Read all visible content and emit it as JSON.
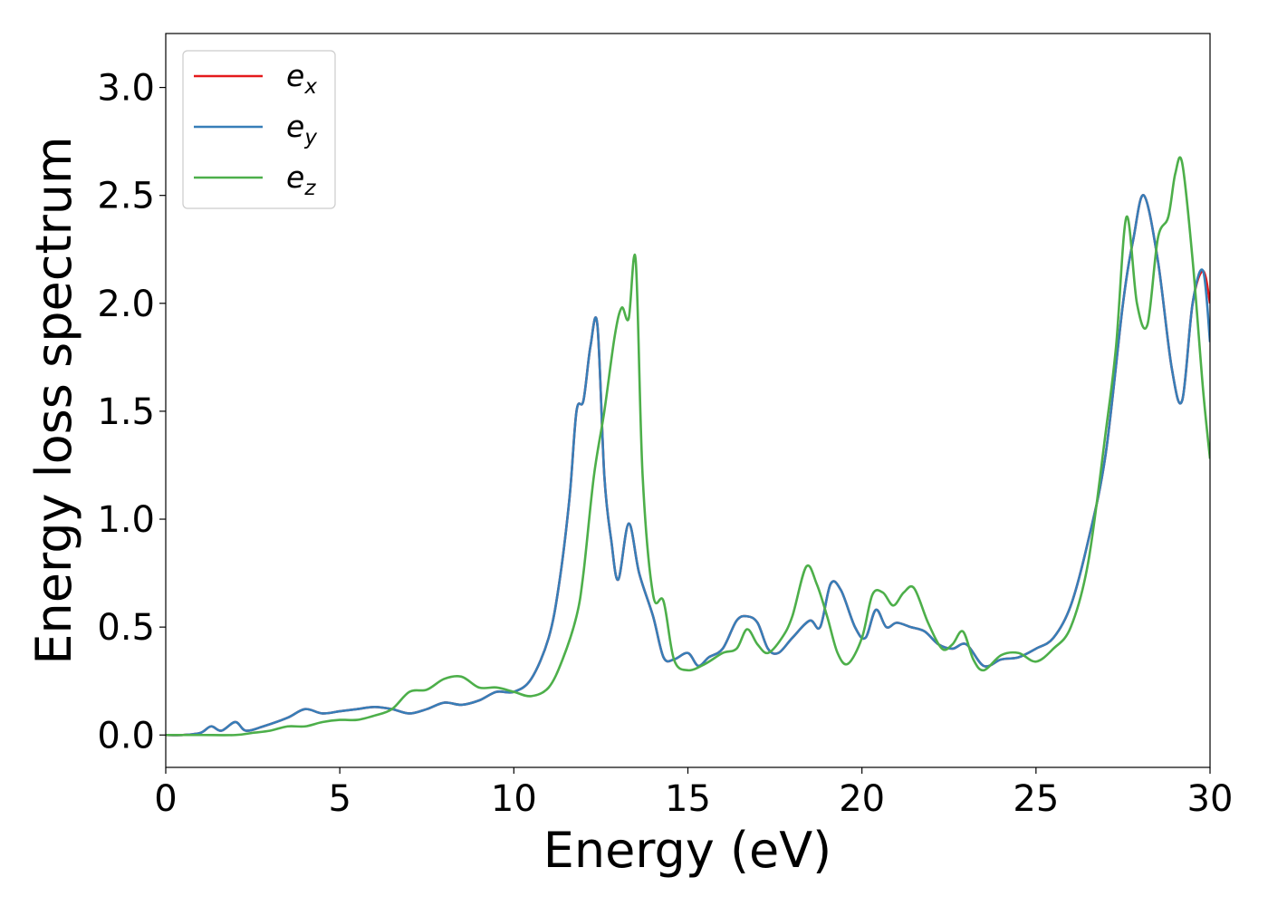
{
  "chart_data": {
    "type": "line",
    "title": "",
    "xlabel": "Energy (eV)",
    "ylabel": "Energy loss spectrum",
    "xlim": [
      0,
      30
    ],
    "ylim": [
      -0.15,
      3.25
    ],
    "xticks": [
      0,
      5,
      10,
      15,
      20,
      25,
      30
    ],
    "yticks": [
      0.0,
      0.5,
      1.0,
      1.5,
      2.0,
      2.5,
      3.0
    ],
    "xtick_labels": [
      "0",
      "5",
      "10",
      "15",
      "20",
      "25",
      "30"
    ],
    "ytick_labels": [
      "0.0",
      "0.5",
      "1.0",
      "1.5",
      "2.0",
      "2.5",
      "3.0"
    ],
    "grid": false,
    "legend_position": "top-left",
    "series": [
      {
        "name": "e_x",
        "label_base": "e",
        "label_sub": "x",
        "color": "#e41a1c",
        "x": [
          0,
          0.5,
          1.0,
          1.3,
          1.6,
          2.0,
          2.3,
          2.8,
          3.5,
          4.0,
          4.5,
          5.0,
          5.5,
          6.0,
          6.5,
          7.0,
          7.5,
          8.0,
          8.5,
          9.0,
          9.5,
          10.0,
          10.5,
          11.0,
          11.3,
          11.6,
          11.8,
          12.0,
          12.2,
          12.4,
          12.6,
          12.8,
          13.0,
          13.3,
          13.6,
          14.0,
          14.3,
          14.6,
          15.0,
          15.3,
          15.6,
          16.0,
          16.4,
          16.7,
          17.0,
          17.3,
          17.6,
          18.0,
          18.5,
          18.8,
          19.1,
          19.4,
          19.8,
          20.1,
          20.4,
          20.7,
          21.0,
          21.4,
          21.8,
          22.2,
          22.6,
          23.0,
          23.5,
          24.0,
          24.5,
          25.0,
          25.5,
          26.0,
          26.5,
          27.0,
          27.5,
          27.8,
          28.1,
          28.5,
          28.9,
          29.2,
          29.5,
          29.8,
          30.0
        ],
        "values": [
          0,
          0,
          0.01,
          0.04,
          0.02,
          0.06,
          0.02,
          0.04,
          0.08,
          0.12,
          0.1,
          0.11,
          0.12,
          0.13,
          0.12,
          0.1,
          0.12,
          0.15,
          0.14,
          0.16,
          0.2,
          0.2,
          0.26,
          0.45,
          0.7,
          1.1,
          1.5,
          1.55,
          1.8,
          1.9,
          1.2,
          0.9,
          0.72,
          0.98,
          0.75,
          0.55,
          0.36,
          0.35,
          0.38,
          0.32,
          0.36,
          0.4,
          0.53,
          0.55,
          0.52,
          0.4,
          0.38,
          0.45,
          0.53,
          0.5,
          0.7,
          0.67,
          0.5,
          0.45,
          0.58,
          0.5,
          0.52,
          0.5,
          0.48,
          0.42,
          0.4,
          0.42,
          0.32,
          0.35,
          0.36,
          0.4,
          0.45,
          0.6,
          0.9,
          1.3,
          2.0,
          2.3,
          2.5,
          2.2,
          1.7,
          1.55,
          2.0,
          2.15,
          2.0
        ]
      },
      {
        "name": "e_y",
        "label_base": "e",
        "label_sub": "y",
        "color": "#377eb8",
        "x": [
          0,
          0.5,
          1.0,
          1.3,
          1.6,
          2.0,
          2.3,
          2.8,
          3.5,
          4.0,
          4.5,
          5.0,
          5.5,
          6.0,
          6.5,
          7.0,
          7.5,
          8.0,
          8.5,
          9.0,
          9.5,
          10.0,
          10.5,
          11.0,
          11.3,
          11.6,
          11.8,
          12.0,
          12.2,
          12.4,
          12.6,
          12.8,
          13.0,
          13.3,
          13.6,
          14.0,
          14.3,
          14.6,
          15.0,
          15.3,
          15.6,
          16.0,
          16.4,
          16.7,
          17.0,
          17.3,
          17.6,
          18.0,
          18.5,
          18.8,
          19.1,
          19.4,
          19.8,
          20.1,
          20.4,
          20.7,
          21.0,
          21.4,
          21.8,
          22.2,
          22.6,
          23.0,
          23.5,
          24.0,
          24.5,
          25.0,
          25.5,
          26.0,
          26.5,
          27.0,
          27.5,
          27.8,
          28.1,
          28.5,
          28.9,
          29.2,
          29.5,
          29.8,
          30.0
        ],
        "values": [
          0,
          0,
          0.01,
          0.04,
          0.02,
          0.06,
          0.02,
          0.04,
          0.08,
          0.12,
          0.1,
          0.11,
          0.12,
          0.13,
          0.12,
          0.1,
          0.12,
          0.15,
          0.14,
          0.16,
          0.2,
          0.2,
          0.26,
          0.45,
          0.7,
          1.1,
          1.5,
          1.55,
          1.8,
          1.9,
          1.2,
          0.9,
          0.72,
          0.98,
          0.75,
          0.55,
          0.36,
          0.35,
          0.38,
          0.32,
          0.36,
          0.4,
          0.53,
          0.55,
          0.52,
          0.4,
          0.38,
          0.45,
          0.53,
          0.5,
          0.7,
          0.67,
          0.5,
          0.45,
          0.58,
          0.5,
          0.52,
          0.5,
          0.48,
          0.42,
          0.4,
          0.42,
          0.32,
          0.35,
          0.36,
          0.4,
          0.45,
          0.6,
          0.9,
          1.3,
          2.0,
          2.3,
          2.5,
          2.2,
          1.7,
          1.55,
          2.0,
          2.15,
          1.82
        ]
      },
      {
        "name": "e_z",
        "label_base": "e",
        "label_sub": "z",
        "color": "#4daf4a",
        "x": [
          0,
          1.0,
          2.0,
          2.5,
          3.0,
          3.5,
          4.0,
          4.5,
          5.0,
          5.5,
          6.0,
          6.5,
          7.0,
          7.5,
          8.0,
          8.5,
          9.0,
          9.5,
          10.0,
          10.5,
          11.0,
          11.4,
          11.8,
          12.0,
          12.3,
          12.6,
          12.9,
          13.1,
          13.3,
          13.5,
          13.7,
          14.0,
          14.3,
          14.6,
          15.0,
          15.5,
          16.0,
          16.4,
          16.7,
          17.0,
          17.3,
          17.7,
          18.0,
          18.4,
          18.7,
          19.0,
          19.3,
          19.6,
          20.0,
          20.3,
          20.6,
          20.9,
          21.2,
          21.5,
          21.9,
          22.3,
          22.6,
          22.9,
          23.2,
          23.5,
          24.0,
          24.5,
          25.0,
          25.5,
          26.0,
          26.5,
          27.0,
          27.3,
          27.6,
          27.9,
          28.2,
          28.5,
          28.8,
          29.0,
          29.2,
          29.5,
          29.8,
          30.0
        ],
        "values": [
          0,
          0,
          0,
          0.01,
          0.02,
          0.04,
          0.04,
          0.06,
          0.07,
          0.07,
          0.09,
          0.12,
          0.2,
          0.21,
          0.26,
          0.27,
          0.22,
          0.22,
          0.2,
          0.18,
          0.22,
          0.35,
          0.55,
          0.75,
          1.2,
          1.5,
          1.85,
          1.98,
          1.93,
          2.2,
          1.2,
          0.65,
          0.62,
          0.35,
          0.3,
          0.33,
          0.38,
          0.4,
          0.49,
          0.42,
          0.38,
          0.45,
          0.55,
          0.78,
          0.7,
          0.55,
          0.38,
          0.33,
          0.45,
          0.65,
          0.66,
          0.6,
          0.66,
          0.68,
          0.52,
          0.4,
          0.42,
          0.48,
          0.35,
          0.3,
          0.37,
          0.38,
          0.34,
          0.4,
          0.5,
          0.8,
          1.4,
          1.8,
          2.4,
          2.0,
          1.9,
          2.3,
          2.4,
          2.6,
          2.65,
          2.2,
          1.6,
          1.28
        ]
      }
    ]
  }
}
